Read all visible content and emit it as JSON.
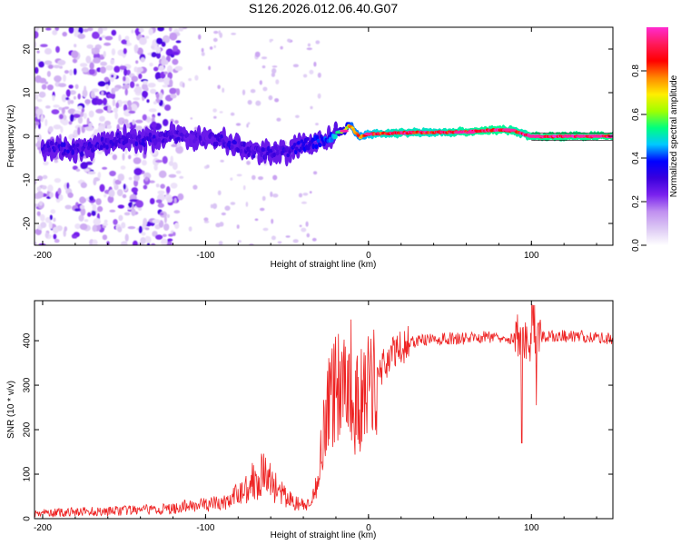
{
  "figure_title": "S126.2026.012.06.40.G07",
  "colors": {
    "snr_line": "#ee2222",
    "axis": "#000000",
    "colormap": [
      "#ffffff",
      "#dcc8f4",
      "#c090f0",
      "#7a22ee",
      "#3a00dd",
      "#0000ff",
      "#00c8ff",
      "#00ff80",
      "#a0ff00",
      "#ffee00",
      "#ff8800",
      "#ff0000",
      "#ff1a5a",
      "#ff2ad0"
    ]
  },
  "chart_data": [
    {
      "type": "heatmap",
      "title": "S126.2026.012.06.40.G07",
      "xlabel": "Height of straight line (km)",
      "ylabel": "Frequency (Hz)",
      "xlim": [
        -205,
        150
      ],
      "ylim": [
        -25,
        25
      ],
      "xticks": [
        -200,
        -100,
        0,
        100
      ],
      "yticks": [
        -20,
        -10,
        0,
        10,
        20
      ],
      "xtick_labels": [
        "-200",
        "-100",
        "0",
        "100"
      ],
      "ytick_labels": [
        "-20",
        "-10",
        "0",
        "10",
        "20"
      ],
      "colorbar": {
        "label": "Normalized spectral amplitude",
        "range": [
          0,
          1
        ],
        "ticks": [
          0.0,
          0.2,
          0.4,
          0.6,
          0.8
        ],
        "tick_labels": [
          "0.0",
          "0.2",
          "0.4",
          "0.6",
          "0.8"
        ]
      },
      "ridge": {
        "x": [
          -200,
          -185,
          -175,
          -160,
          -150,
          -140,
          -130,
          -120,
          -110,
          -100,
          -90,
          -85,
          -80,
          -75,
          -70,
          -65,
          -60,
          -55,
          -50,
          -45,
          -40,
          -35,
          -30,
          -25,
          -20,
          -15,
          -12,
          -10,
          -8,
          -5,
          -2,
          0,
          5,
          10,
          20,
          40,
          60,
          80,
          90,
          95,
          100,
          110,
          120,
          140,
          150
        ],
        "freq": [
          -2.5,
          -3.0,
          -3.2,
          -1.5,
          -0.5,
          -1.0,
          -0.5,
          0.2,
          -0.2,
          -0.5,
          -0.8,
          -1.5,
          -2.2,
          -3.0,
          -3.5,
          -3.8,
          -3.5,
          -3.2,
          -3.8,
          -2.8,
          -2.0,
          -1.5,
          -1.2,
          -0.8,
          0.8,
          1.2,
          2.5,
          2.0,
          0.8,
          -0.2,
          0.3,
          0.5,
          0.6,
          0.6,
          0.8,
          0.9,
          1.0,
          1.5,
          1.2,
          0.5,
          0.0,
          -0.1,
          0.0,
          0.0,
          0.0
        ],
        "amplitude": [
          0.3,
          0.32,
          0.3,
          0.3,
          0.3,
          0.3,
          0.3,
          0.3,
          0.28,
          0.28,
          0.3,
          0.32,
          0.3,
          0.3,
          0.3,
          0.3,
          0.32,
          0.3,
          0.32,
          0.35,
          0.35,
          0.35,
          0.38,
          0.4,
          0.5,
          0.6,
          0.72,
          0.78,
          0.8,
          0.8,
          0.82,
          0.85,
          0.88,
          0.9,
          0.92,
          0.9,
          0.95,
          0.96,
          0.94,
          0.92,
          0.96,
          0.97,
          0.97,
          0.97,
          0.97
        ]
      },
      "noise_region": {
        "x": [
          -205,
          -115
        ],
        "freq": [
          -25,
          25
        ],
        "amplitude": "0.05-0.3"
      }
    },
    {
      "type": "line",
      "title": "",
      "xlabel": "Height of straight line (km)",
      "ylabel": "SNR (10 * v/v)",
      "xlim": [
        -205,
        150
      ],
      "ylim": [
        0,
        490
      ],
      "xticks": [
        -200,
        -100,
        0,
        100
      ],
      "yticks": [
        0,
        100,
        200,
        300,
        400
      ],
      "xtick_labels": [
        "-200",
        "-100",
        "0",
        "100"
      ],
      "ytick_labels": [
        "0",
        "100",
        "200",
        "300",
        "400"
      ],
      "series": [
        {
          "name": "SNR",
          "x": [
            -205,
            -180,
            -150,
            -120,
            -110,
            -100,
            -90,
            -85,
            -80,
            -75,
            -70,
            -65,
            -60,
            -55,
            -50,
            -45,
            -40,
            -35,
            -32,
            -30,
            -28,
            -25,
            -22,
            -20,
            -18,
            -15,
            -12,
            -10,
            -8,
            -5,
            -2,
            0,
            5,
            10,
            15,
            20,
            25,
            30,
            40,
            50,
            60,
            70,
            80,
            90,
            95,
            98,
            100,
            105,
            110,
            120,
            130,
            140,
            150
          ],
          "y": [
            12,
            15,
            18,
            22,
            30,
            32,
            35,
            40,
            55,
            70,
            90,
            100,
            85,
            60,
            45,
            35,
            30,
            28,
            80,
            120,
            200,
            250,
            280,
            300,
            310,
            320,
            330,
            300,
            250,
            260,
            280,
            290,
            320,
            350,
            370,
            385,
            395,
            400,
            402,
            405,
            405,
            408,
            410,
            405,
            400,
            402,
            408,
            410,
            410,
            410,
            410,
            408,
            405
          ]
        }
      ]
    }
  ]
}
